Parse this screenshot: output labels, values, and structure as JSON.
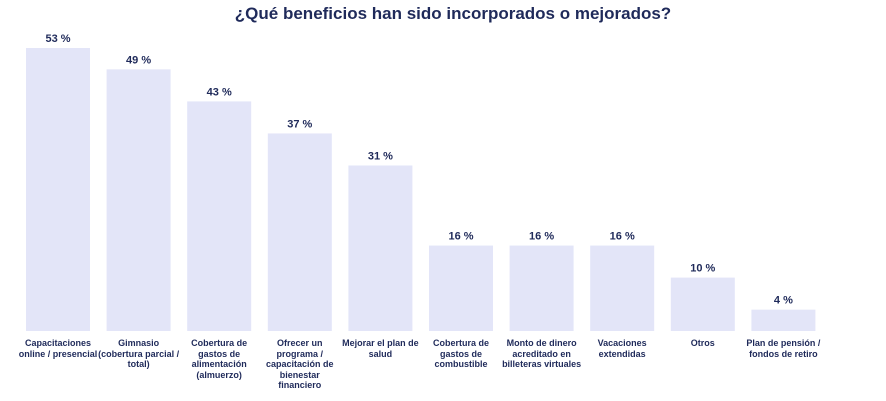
{
  "chart_data": {
    "type": "bar",
    "title": "¿Qué beneficios han sido incorporados o mejorados?",
    "categories": [
      "Capacitaciones online / presencial",
      "Gimnasio (cobertura parcial / total)",
      "Cobertura de gastos de alimentación (almuerzo)",
      "Ofrecer un programa / capacitación de bienestar financiero",
      "Mejorar el plan de salud",
      "Cobertura de gastos de combustible",
      "Monto de dinero acreditado en billeteras virtuales",
      "Vacaciones extendidas",
      "Otros",
      "Plan de pensión / fondos de retiro"
    ],
    "values": [
      53,
      49,
      43,
      37,
      31,
      16,
      16,
      16,
      10,
      4
    ],
    "value_labels": [
      "53 %",
      "49 %",
      "43 %",
      "37 %",
      "31 %",
      "16 %",
      "16 %",
      "16 %",
      "10 %",
      "4 %"
    ],
    "xlabel": "",
    "ylabel": "",
    "ylim": [
      0,
      53
    ],
    "grid": false,
    "bar_color": "#e3e5f8",
    "text_color": "#1f2a5a"
  }
}
